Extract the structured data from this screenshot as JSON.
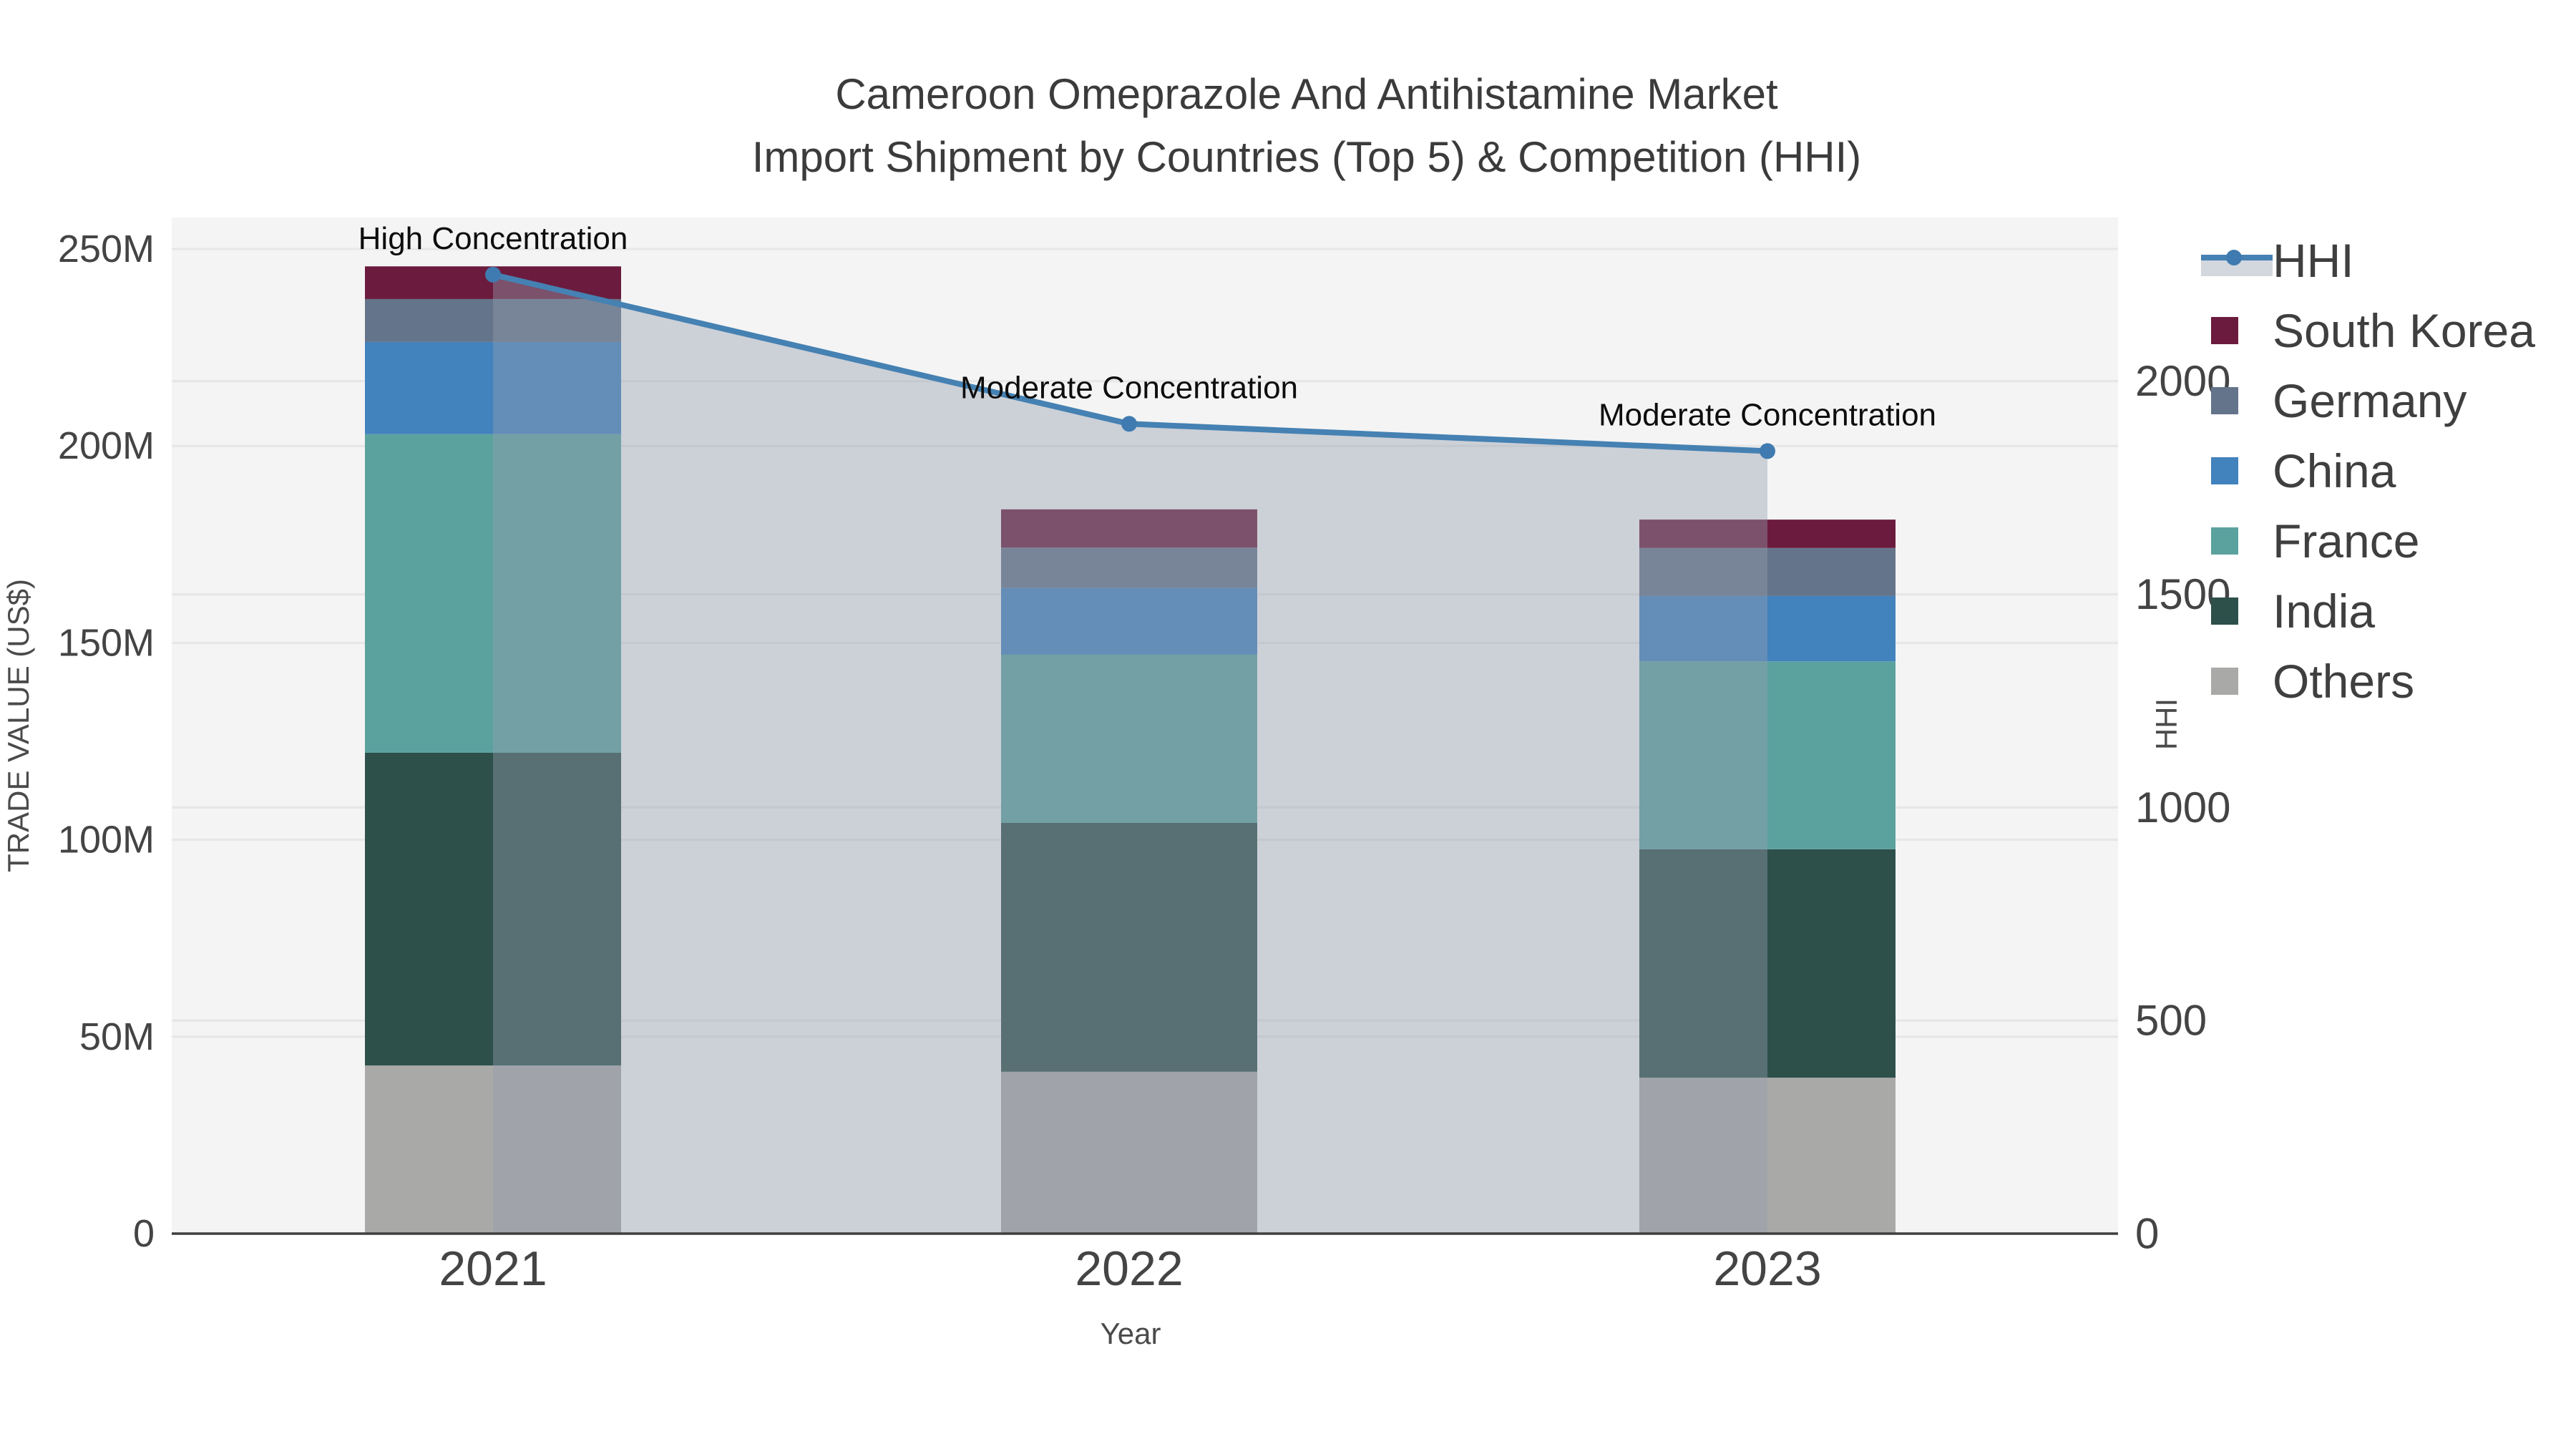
{
  "title": {
    "line1": "Cameroon Omeprazole And Antihistamine Market",
    "line2": "Import Shipment by Countries (Top 5) & Competition (HHI)"
  },
  "chart_data": {
    "type": "bar+line",
    "categories": [
      "2021",
      "2022",
      "2023"
    ],
    "series": [
      {
        "name": "Others",
        "color": "#a9a9a7",
        "values": [
          42.7,
          41.1,
          39.6
        ]
      },
      {
        "name": "India",
        "color": "#2d504b",
        "values": [
          79.4,
          63.2,
          58.0
        ]
      },
      {
        "name": "France",
        "color": "#5ba29f",
        "values": [
          80.9,
          42.7,
          47.7
        ]
      },
      {
        "name": "China",
        "color": "#4282bd",
        "values": [
          23.4,
          16.9,
          16.6
        ]
      },
      {
        "name": "Germany",
        "color": "#64748a",
        "values": [
          10.9,
          10.3,
          12.2
        ]
      },
      {
        "name": "South Korea",
        "color": "#6b1b3d",
        "values": [
          8.3,
          9.7,
          7.2
        ]
      }
    ],
    "bar_totals": [
      245.6,
      183.9,
      181.3
    ],
    "line": {
      "name": "HHI",
      "color": "#4581b2",
      "marker_color": "#3f7bb0",
      "area_fill": "rgba(148,158,174,0.42)",
      "legend_band_color": "#d3d7de",
      "values": [
        2250,
        1900,
        1836
      ]
    },
    "annotations": [
      "High Concentration",
      "Moderate Concentration",
      "Moderate Concentration"
    ],
    "xlabel": "Year",
    "ylabel_left": "TRADE VALUE (US$)",
    "ylabel_right": "HHI",
    "yticks_left": {
      "values": [
        0,
        50,
        100,
        150,
        200,
        250
      ],
      "labels": [
        "0",
        "50M",
        "100M",
        "150M",
        "200M",
        "250M"
      ]
    },
    "yticks_right": {
      "values": [
        0,
        500,
        1000,
        1500,
        2000
      ],
      "labels": [
        "0",
        "500",
        "1000",
        "1500",
        "2000"
      ]
    },
    "ylim_left": [
      0,
      258
    ],
    "ylim_right": [
      0,
      2384
    ],
    "grid": true,
    "legend_position": "right",
    "legend_order": [
      "HHI",
      "South Korea",
      "Germany",
      "China",
      "France",
      "India",
      "Others"
    ]
  },
  "style_colors": {
    "plot_bg": "#f4f4f4",
    "gridline": "#e7e7e7",
    "axis_line": "#3f3f3f"
  }
}
